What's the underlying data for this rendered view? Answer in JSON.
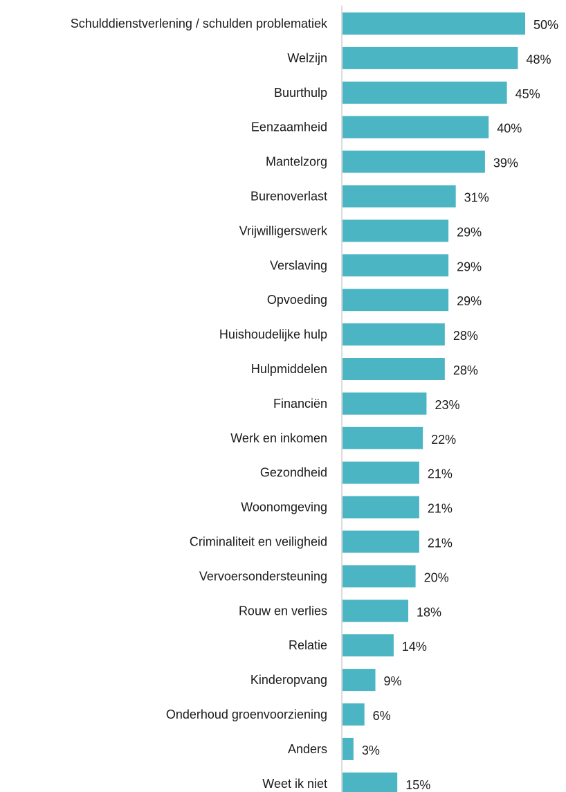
{
  "chart_data": {
    "type": "bar",
    "orientation": "horizontal",
    "bar_color": "#4BB5C4",
    "value_format": "percent",
    "xlim": [
      0,
      50
    ],
    "grid": false,
    "legend": "none",
    "categories": [
      "Schulddienstverlening / schulden problematiek",
      "Welzijn",
      "Buurthulp",
      "Eenzaamheid",
      "Mantelzorg",
      "Burenoverlast",
      "Vrijwilligerswerk",
      "Verslaving",
      "Opvoeding",
      "Huishoudelijke hulp",
      "Hulpmiddelen",
      "Financiën",
      "Werk en inkomen",
      "Gezondheid",
      "Woonomgeving",
      "Criminaliteit en veiligheid",
      "Vervoersondersteuning",
      "Rouw en verlies",
      "Relatie",
      "Kinderopvang",
      "Onderhoud groenvoorziening",
      "Anders",
      "Weet ik niet"
    ],
    "values": [
      50,
      48,
      45,
      40,
      39,
      31,
      29,
      29,
      29,
      28,
      28,
      23,
      22,
      21,
      21,
      21,
      20,
      18,
      14,
      9,
      6,
      3,
      15
    ],
    "data_labels": [
      "50%",
      "48%",
      "45%",
      "40%",
      "39%",
      "31%",
      "29%",
      "29%",
      "29%",
      "28%",
      "28%",
      "23%",
      "22%",
      "21%",
      "21%",
      "21%",
      "20%",
      "18%",
      "14%",
      "9%",
      "6%",
      "3%",
      "15%"
    ]
  }
}
